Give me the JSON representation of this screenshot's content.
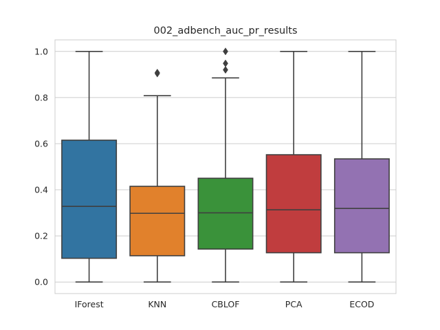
{
  "chart_data": {
    "type": "box",
    "title": "002_adbench_auc_pr_results",
    "xlabel": "",
    "ylabel": "",
    "ylim": [
      -0.05,
      1.05
    ],
    "yticks": [
      "0.0",
      "0.2",
      "0.4",
      "0.6",
      "0.8",
      "1.0"
    ],
    "ytick_values": [
      0.0,
      0.2,
      0.4,
      0.6,
      0.8,
      1.0
    ],
    "grid": true,
    "categories": [
      "IForest",
      "KNN",
      "CBLOF",
      "PCA",
      "ECOD"
    ],
    "boxes": [
      {
        "name": "IForest",
        "whisker_low": 0.0,
        "q1": 0.103,
        "median": 0.328,
        "q3": 0.615,
        "whisker_high": 1.0,
        "outliers": []
      },
      {
        "name": "KNN",
        "whisker_low": 0.0,
        "q1": 0.114,
        "median": 0.298,
        "q3": 0.415,
        "whisker_high": 0.808,
        "outliers": [
          0.904,
          0.908
        ]
      },
      {
        "name": "CBLOF",
        "whisker_low": 0.0,
        "q1": 0.143,
        "median": 0.3,
        "q3": 0.45,
        "whisker_high": 0.885,
        "outliers": [
          0.92,
          0.948,
          1.0
        ]
      },
      {
        "name": "PCA",
        "whisker_low": 0.0,
        "q1": 0.127,
        "median": 0.313,
        "q3": 0.552,
        "whisker_high": 1.0,
        "outliers": []
      },
      {
        "name": "ECOD",
        "whisker_low": 0.0,
        "q1": 0.127,
        "median": 0.319,
        "q3": 0.534,
        "whisker_high": 1.0,
        "outliers": []
      }
    ],
    "colors": [
      "#3274a1",
      "#e1812c",
      "#3a923a",
      "#c03d3e",
      "#9372b2"
    ],
    "line_color": "#3f3f3f",
    "grid_color": "#cccccc",
    "spine_color": "#cccccc"
  }
}
